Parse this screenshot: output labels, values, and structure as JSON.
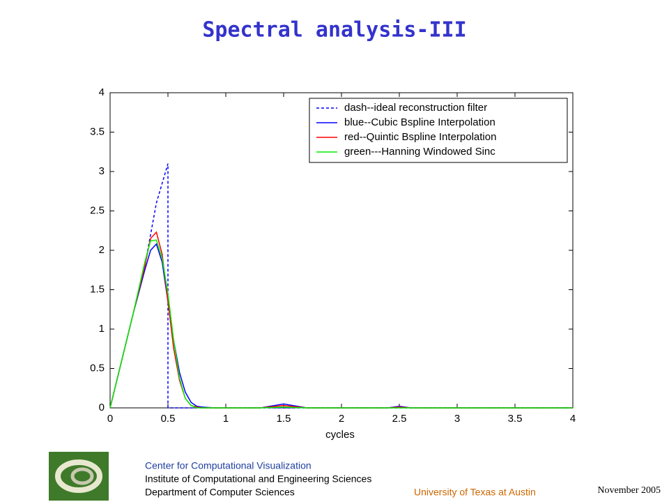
{
  "slide": {
    "title": "Spectral analysis-III",
    "footer": {
      "center": "Center for Computational Visualization",
      "institute": "Institute of Computational and Engineering Sciences",
      "department": "Department of Computer Sciences",
      "university": "University of Texas at Austin",
      "date": "November  2005"
    }
  },
  "chart_data": {
    "type": "line",
    "xlabel": "cycles",
    "x": [
      0,
      0.1,
      0.2,
      0.3,
      0.35,
      0.4,
      0.45,
      0.5,
      0.5,
      0.55,
      0.6,
      0.65,
      0.7,
      0.75,
      0.8,
      0.9,
      1.3,
      1.5,
      1.7,
      2.4,
      2.5,
      2.6,
      4
    ],
    "series": [
      {
        "name": "dash--ideal reconstruction filter",
        "color": "#0000ff",
        "dashed": true,
        "values": [
          0,
          0.6,
          1.2,
          1.8,
          2.2,
          2.6,
          2.85,
          3.1,
          0,
          0,
          0,
          0,
          0,
          0,
          0,
          0,
          0,
          0,
          0,
          0,
          0,
          0,
          0
        ]
      },
      {
        "name": "blue--Cubic Bspline Interpolation",
        "color": "#0000ff",
        "values": [
          0,
          0.6,
          1.2,
          1.75,
          2.0,
          2.08,
          1.85,
          1.35,
          1.35,
          0.85,
          0.45,
          0.2,
          0.07,
          0.02,
          0.01,
          0,
          0,
          0.05,
          0,
          0,
          0.02,
          0,
          0
        ]
      },
      {
        "name": "red--Quintic Bspline Interpolation",
        "color": "#ff0000",
        "values": [
          0,
          0.6,
          1.2,
          1.8,
          2.15,
          2.23,
          1.95,
          1.35,
          1.35,
          0.75,
          0.35,
          0.12,
          0.03,
          0.01,
          0,
          0,
          0,
          0.03,
          0,
          0,
          0.01,
          0,
          0
        ]
      },
      {
        "name": "green---Hanning Windowed Sinc",
        "color": "#00ee00",
        "values": [
          0,
          0.6,
          1.2,
          1.85,
          2.12,
          2.13,
          1.9,
          1.45,
          1.45,
          0.85,
          0.38,
          0.12,
          0.03,
          0,
          0,
          0,
          0,
          0.01,
          0,
          0,
          0,
          0,
          0
        ]
      }
    ],
    "xlim": [
      0,
      4
    ],
    "xticks": [
      0,
      0.5,
      1,
      1.5,
      2,
      2.5,
      3,
      3.5,
      4
    ],
    "ylim": [
      0,
      4
    ],
    "yticks": [
      0,
      0.5,
      1,
      1.5,
      2,
      2.5,
      3,
      3.5,
      4
    ],
    "legend": "upper-right"
  }
}
